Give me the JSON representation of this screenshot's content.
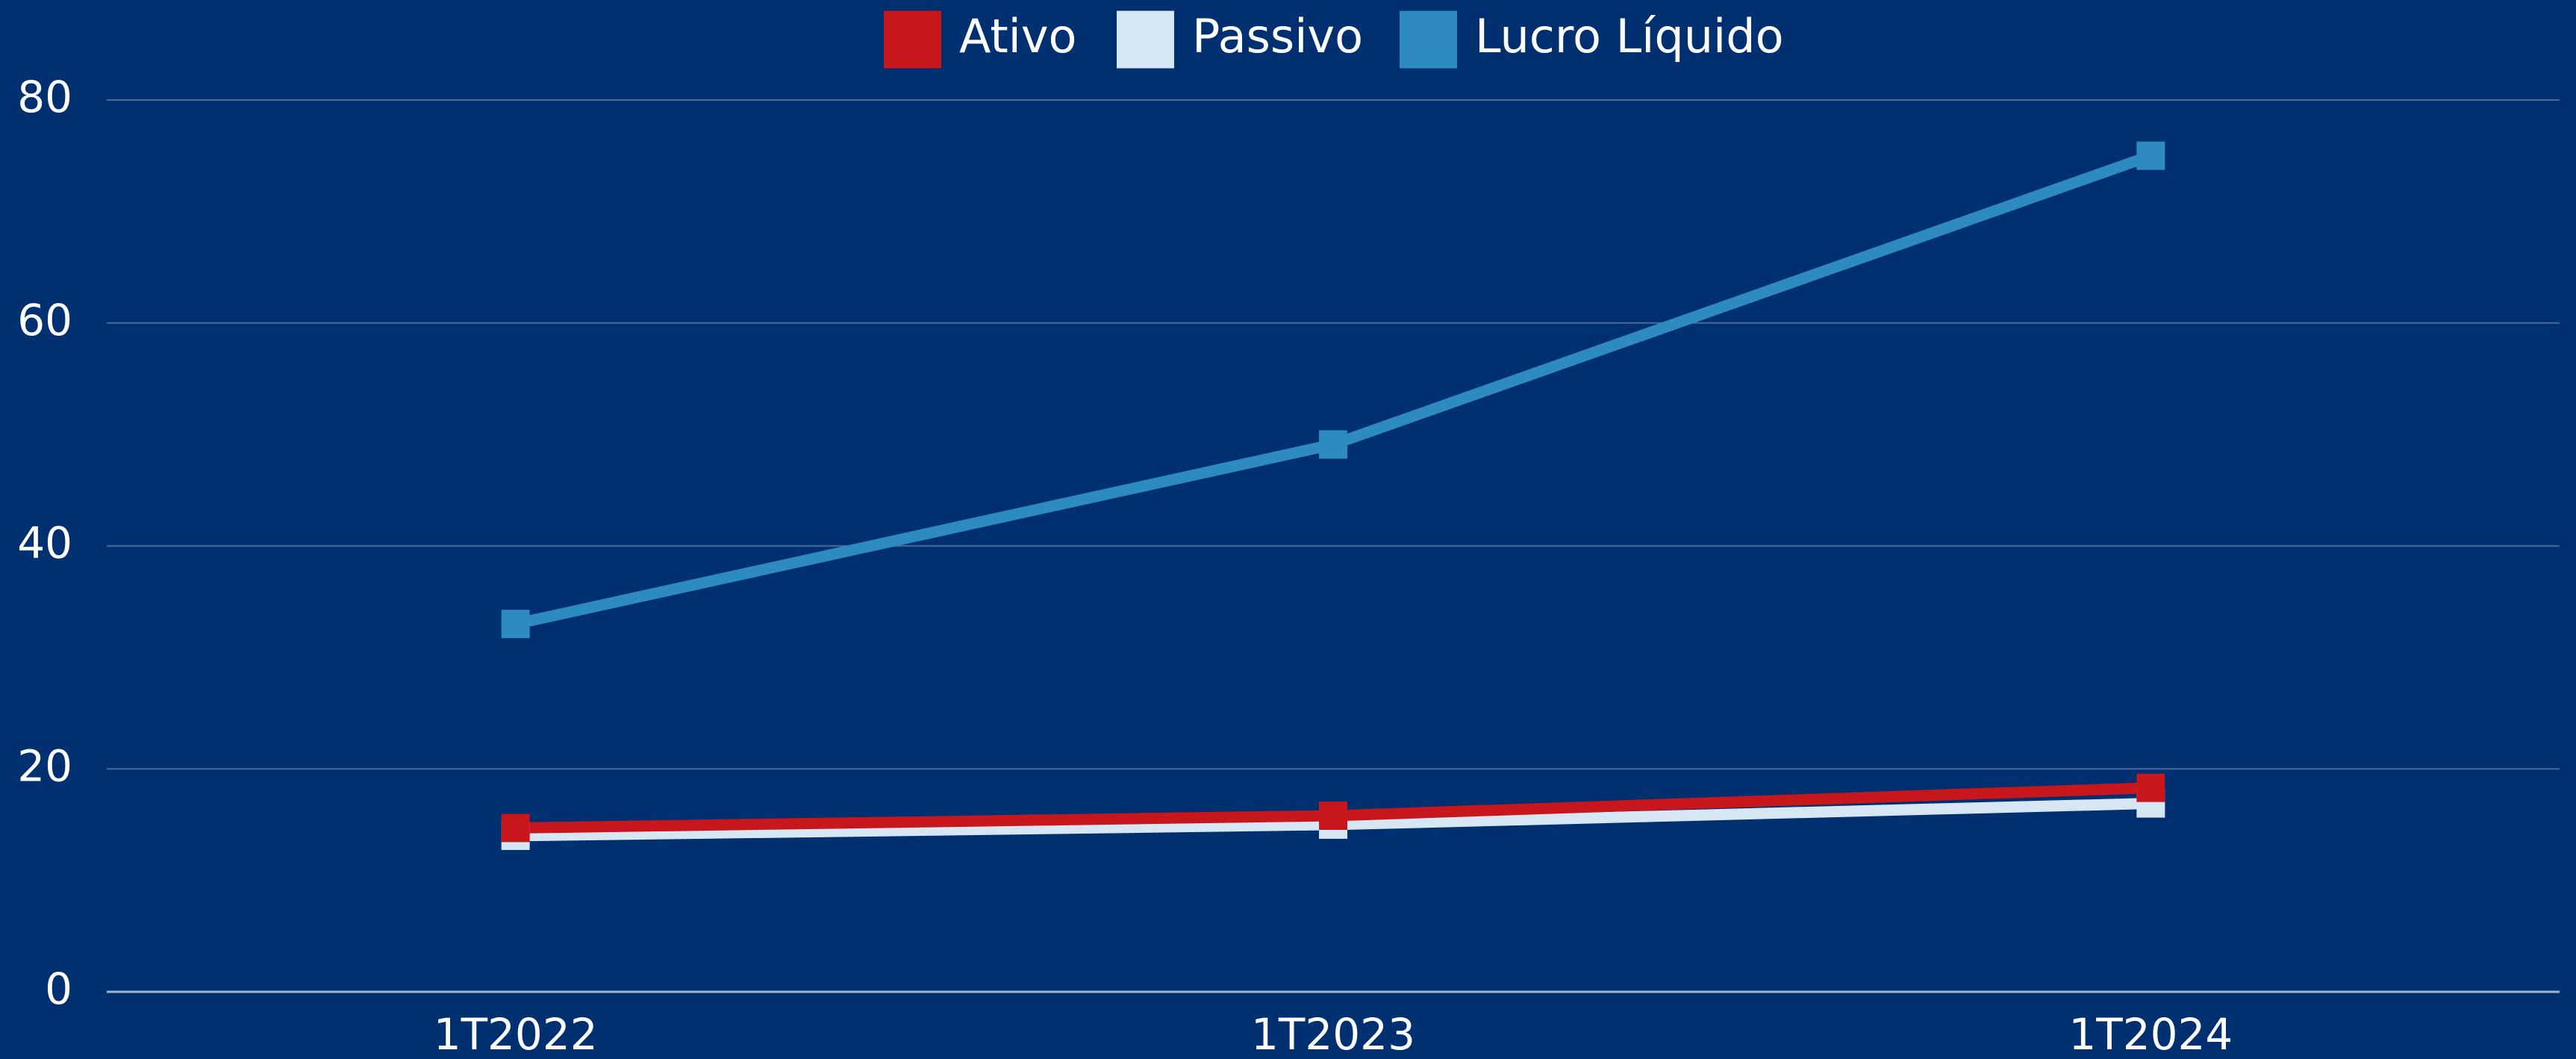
{
  "chart_data": {
    "type": "line",
    "categories": [
      "1T2022",
      "1T2023",
      "1T2024"
    ],
    "series": [
      {
        "name": "Ativo",
        "color": "#c8161d",
        "values": [
          14.7,
          15.8,
          18.3
        ]
      },
      {
        "name": "Passivo",
        "color": "#d6e6f2",
        "values": [
          14.0,
          15.0,
          16.9
        ]
      },
      {
        "name": "Lucro Líquido",
        "color": "#2e8bc0",
        "values": [
          33.0,
          49.1,
          75.0
        ]
      }
    ],
    "ylim": [
      0,
      80
    ],
    "yticks": [
      0,
      20,
      40,
      60,
      80
    ],
    "grid": true,
    "legend": "top"
  }
}
